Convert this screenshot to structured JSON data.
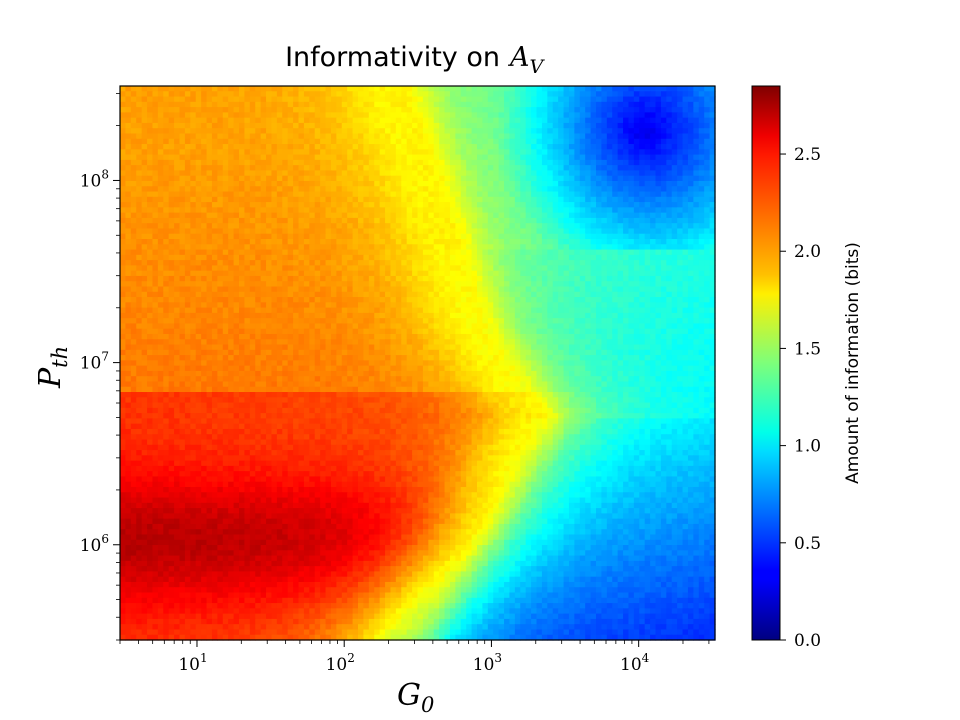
{
  "chart_data": {
    "type": "heatmap",
    "title": "Informativity on",
    "title_math_symbol": "A",
    "title_math_subscript": "V",
    "xlabel": {
      "symbol": "G",
      "subscript": "0"
    },
    "ylabel": {
      "symbol": "P",
      "subscript": "th"
    },
    "xscale": "log",
    "yscale": "log",
    "xlim": [
      3,
      33000
    ],
    "ylim": [
      300000,
      330000000
    ],
    "x_ticks": [
      {
        "value": 10,
        "label_base": "10",
        "label_exp": "1"
      },
      {
        "value": 100,
        "label_base": "10",
        "label_exp": "2"
      },
      {
        "value": 1000,
        "label_base": "10",
        "label_exp": "3"
      },
      {
        "value": 10000,
        "label_base": "10",
        "label_exp": "4"
      }
    ],
    "y_ticks": [
      {
        "value": 1000000,
        "label_base": "10",
        "label_exp": "6"
      },
      {
        "value": 10000000,
        "label_base": "10",
        "label_exp": "7"
      },
      {
        "value": 100000000,
        "label_base": "10",
        "label_exp": "8"
      }
    ],
    "grid": false,
    "colormap": "jet",
    "colorbar": {
      "label": "Amount of information (bits)",
      "range": [
        0,
        2.85
      ],
      "ticks": [
        "0.0",
        "0.5",
        "1.0",
        "1.5",
        "2.0",
        "2.5"
      ]
    },
    "value_description": "amount of information in bits as a function of G0 (x) and Pth (y)",
    "grid_resolution": [
      110,
      105
    ],
    "grid_values": [
      [
        2.65,
        2.6,
        2.5,
        2.38,
        2.28,
        2.22,
        2.2,
        2.2,
        2.21,
        2.22,
        1.75,
        0.9,
        0.85
      ],
      [
        2.6,
        2.55,
        2.45,
        2.35,
        2.25,
        2.2,
        2.18,
        2.18,
        2.18,
        2.2,
        1.8,
        1.25,
        1.15
      ],
      [
        2.2,
        2.18,
        2.15,
        2.13,
        2.12,
        2.13,
        2.13,
        2.1,
        2.05,
        1.85,
        1.3,
        0.6,
        0.55
      ],
      [
        2.05,
        2.05,
        2.05,
        2.05,
        2.05,
        2.05,
        2.02,
        1.85,
        1.45,
        0.75,
        0.35,
        0.3,
        0.3
      ]
    ]
  }
}
